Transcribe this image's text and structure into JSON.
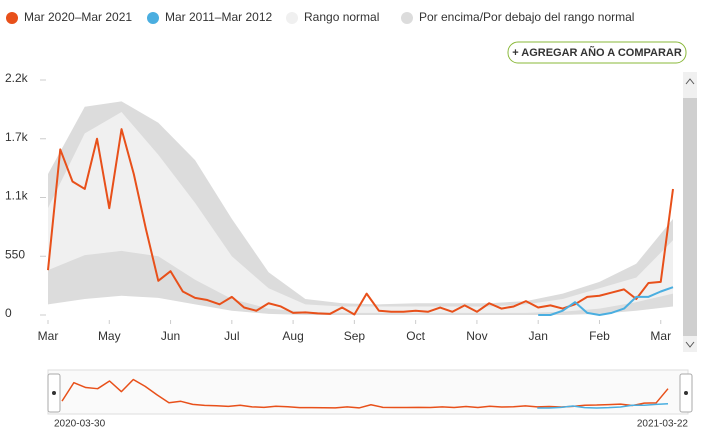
{
  "chart_data": {
    "type": "line",
    "legend": [
      "Mar 2020–Mar 2021",
      "Mar 2011–Mar 2012",
      "Rango normal",
      "Por encima/Por debajo del rango normal"
    ],
    "button": "+ AGREGAR AÑO A COMPARAR",
    "xlim": [
      0,
      51
    ],
    "ylim": [
      0,
      2200
    ],
    "xticks": [
      {
        "value": 0,
        "label": "Mar"
      },
      {
        "value": 5,
        "label": "May"
      },
      {
        "value": 10,
        "label": "Jun"
      },
      {
        "value": 15,
        "label": "Jul"
      },
      {
        "value": 20,
        "label": "Aug"
      },
      {
        "value": 25,
        "label": "Sep"
      },
      {
        "value": 30,
        "label": "Oct"
      },
      {
        "value": 35,
        "label": "Nov"
      },
      {
        "value": 40,
        "label": "Jan"
      },
      {
        "value": 45,
        "label": "Feb"
      },
      {
        "value": 50,
        "label": "Mar"
      }
    ],
    "yticks": [
      0,
      550,
      {
        "value": 1100,
        "label": "1.1k"
      },
      {
        "value": 1650,
        "label": "1.7k"
      },
      {
        "value": 2200,
        "label": "2.2k"
      }
    ],
    "grid": false,
    "series": [
      {
        "name": "Mar 2020–Mar 2021",
        "color": "#e8501a",
        "values": [
          420,
          1550,
          1250,
          1180,
          1650,
          1000,
          1740,
          1320,
          800,
          320,
          410,
          220,
          160,
          140,
          100,
          170,
          70,
          40,
          110,
          80,
          20,
          25,
          15,
          10,
          70,
          5,
          200,
          40,
          30,
          30,
          40,
          30,
          70,
          30,
          90,
          30,
          110,
          60,
          80,
          130,
          70,
          90,
          60,
          100,
          170,
          180,
          210,
          240,
          150,
          300,
          310,
          1180
        ]
      },
      {
        "name": "Mar 2011–Mar 2012",
        "color": "#4aaee0",
        "values": [
          null,
          null,
          null,
          null,
          null,
          null,
          null,
          null,
          null,
          null,
          null,
          null,
          null,
          null,
          null,
          null,
          null,
          null,
          null,
          null,
          null,
          null,
          null,
          null,
          null,
          null,
          null,
          null,
          null,
          null,
          null,
          null,
          null,
          null,
          null,
          null,
          null,
          null,
          null,
          null,
          0,
          0,
          40,
          120,
          20,
          0,
          20,
          60,
          170,
          170,
          220,
          260
        ]
      }
    ],
    "bands": [
      {
        "name": "Por encima/Por debajo del rango normal",
        "color": "#dcdcdc",
        "x": [
          0,
          3,
          6,
          9,
          12,
          15,
          18,
          21,
          24,
          27,
          30,
          33,
          36,
          39,
          42,
          45,
          48,
          51
        ],
        "upper": [
          1320,
          1950,
          2000,
          1800,
          1450,
          900,
          400,
          150,
          110,
          100,
          110,
          110,
          110,
          130,
          200,
          310,
          480,
          900
        ],
        "lower": [
          100,
          150,
          180,
          160,
          100,
          40,
          10,
          0,
          0,
          0,
          0,
          0,
          0,
          0,
          0,
          10,
          40,
          80
        ]
      },
      {
        "name": "Rango normal",
        "color": "#f0f0f0",
        "x": [
          0,
          3,
          6,
          9,
          12,
          15,
          18,
          21,
          24,
          27,
          30,
          33,
          36,
          39,
          42,
          45,
          48,
          51
        ],
        "upper": [
          1000,
          1700,
          1900,
          1500,
          1050,
          550,
          250,
          100,
          80,
          80,
          80,
          80,
          80,
          100,
          150,
          250,
          350,
          700
        ],
        "lower": [
          420,
          560,
          600,
          550,
          330,
          150,
          60,
          30,
          20,
          20,
          20,
          20,
          20,
          20,
          30,
          60,
          120,
          200
        ]
      }
    ],
    "navigator": {
      "start": "2020-03-30",
      "end": "2021-03-22"
    }
  }
}
